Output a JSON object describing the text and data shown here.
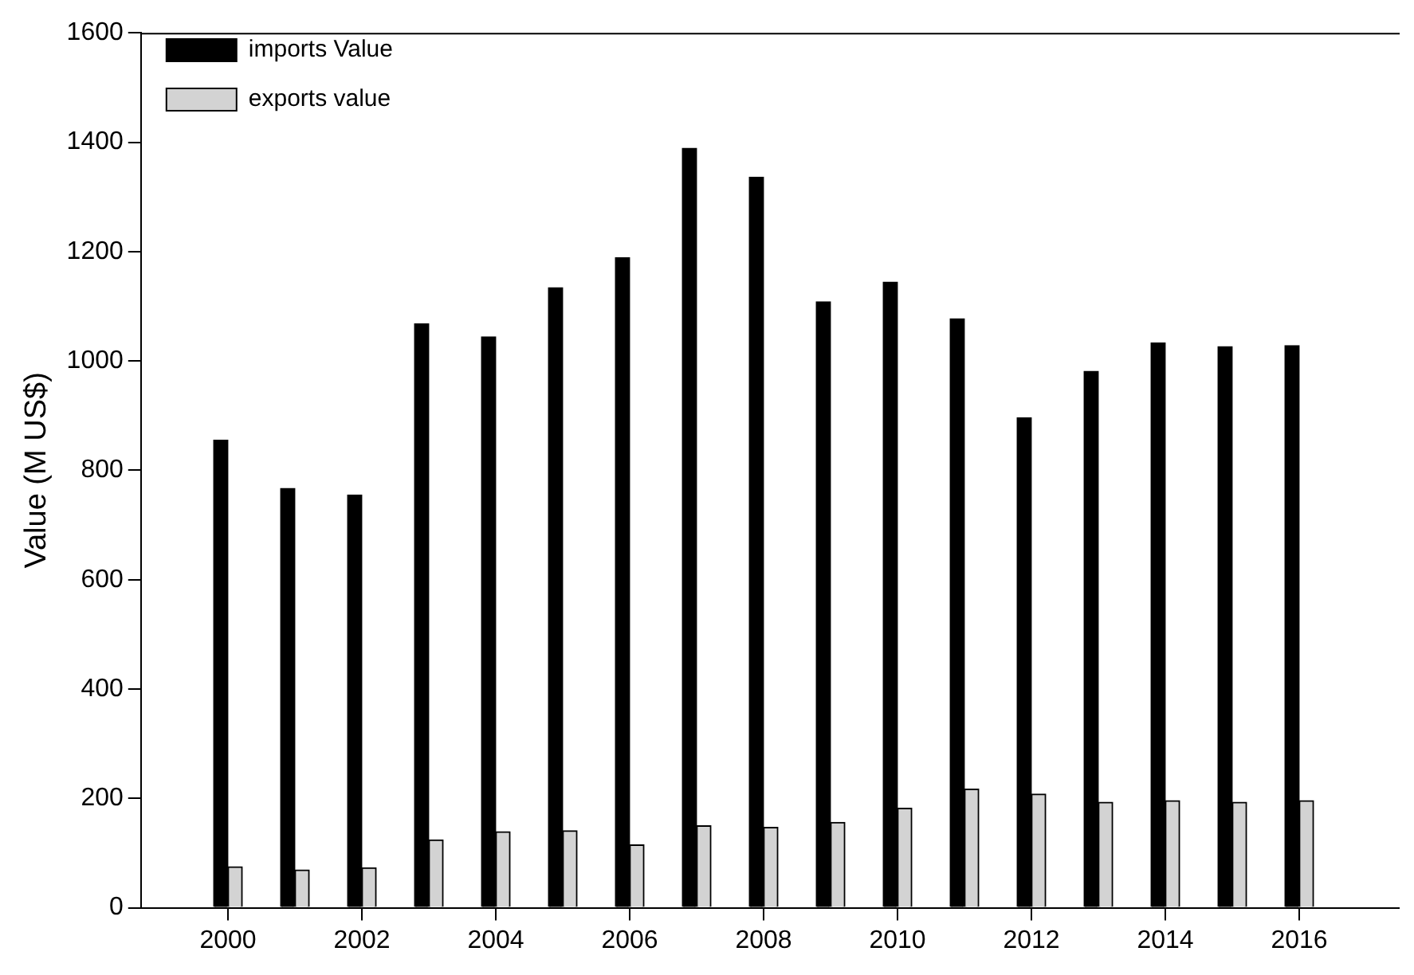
{
  "chart_data": {
    "type": "bar",
    "ylabel": "Value (M US$)",
    "x": [
      2000,
      2001,
      2002,
      2003,
      2004,
      2005,
      2006,
      2007,
      2008,
      2009,
      2010,
      2011,
      2012,
      2013,
      2014,
      2015,
      2016
    ],
    "series": [
      {
        "name": "imports Value",
        "color": "#000000",
        "values": [
          855,
          767,
          755,
          1068,
          1044,
          1134,
          1189,
          1389,
          1336,
          1108,
          1144,
          1077,
          896,
          981,
          1033,
          1026,
          1028
        ]
      },
      {
        "name": "exports value",
        "color": "#d3d3d3",
        "values": [
          75,
          69,
          73,
          124,
          139,
          141,
          115,
          150,
          147,
          156,
          182,
          217,
          208,
          193,
          196,
          193,
          196
        ]
      }
    ],
    "xlim": [
      1998.7,
      2017.5
    ],
    "xticks": [
      2000,
      2002,
      2004,
      2006,
      2008,
      2010,
      2012,
      2014,
      2016
    ],
    "ylim": [
      0,
      1600
    ],
    "yticks": [
      0,
      200,
      400,
      600,
      800,
      1000,
      1200,
      1400,
      1600
    ],
    "grid": false,
    "legend": "top left"
  }
}
